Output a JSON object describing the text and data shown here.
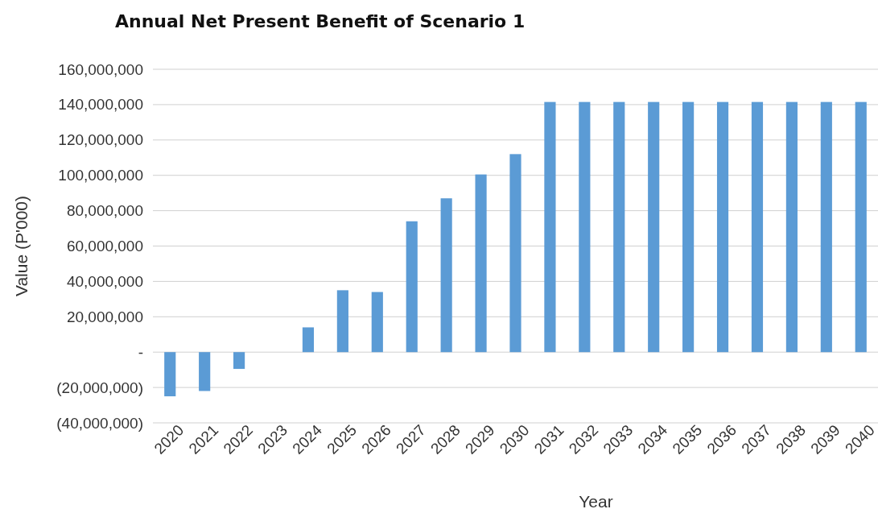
{
  "chart_data": {
    "type": "bar",
    "title": "Annual Net Present Benefit of Scenario 1",
    "xlabel": "Year",
    "ylabel": "Value (P'000)",
    "categories": [
      "2020",
      "2021",
      "2022",
      "2023",
      "2024",
      "2025",
      "2026",
      "2027",
      "2028",
      "2029",
      "2030",
      "2031",
      "2032",
      "2033",
      "2034",
      "2035",
      "2036",
      "2037",
      "2038",
      "2039",
      "2040"
    ],
    "values": [
      -25000000,
      -22000000,
      -9500000,
      0,
      14000000,
      35000000,
      34000000,
      74000000,
      87000000,
      100500000,
      112000000,
      141500000,
      141500000,
      141500000,
      141500000,
      141500000,
      141500000,
      141500000,
      141500000,
      141500000,
      141500000
    ],
    "color": "#5b9bd5",
    "ylim": [
      -40000000,
      160000000
    ],
    "yticks": [
      {
        "value": -40000000,
        "label": "(40,000,000)"
      },
      {
        "value": -20000000,
        "label": "(20,000,000)"
      },
      {
        "value": 0,
        "label": "-"
      },
      {
        "value": 20000000,
        "label": "20,000,000"
      },
      {
        "value": 40000000,
        "label": "40,000,000"
      },
      {
        "value": 60000000,
        "label": "60,000,000"
      },
      {
        "value": 80000000,
        "label": "80,000,000"
      },
      {
        "value": 100000000,
        "label": "100,000,000"
      },
      {
        "value": 120000000,
        "label": "120,000,000"
      },
      {
        "value": 140000000,
        "label": "140,000,000"
      },
      {
        "value": 160000000,
        "label": "160,000,000"
      }
    ],
    "grid": "y"
  }
}
